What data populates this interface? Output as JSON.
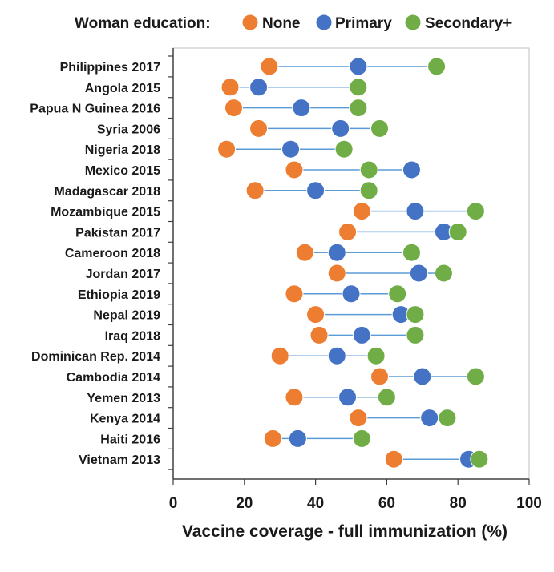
{
  "chart_data": {
    "type": "scatter",
    "subtype": "dumbbell",
    "legend": {
      "title": "Woman education:",
      "position": "top"
    },
    "series": [
      {
        "name": "None",
        "color": "#ED7D31"
      },
      {
        "name": "Primary",
        "color": "#4472C4"
      },
      {
        "name": "Secondary+",
        "color": "#70AD47"
      }
    ],
    "connector_color": "#5B9BD5",
    "xlabel": "Vaccine coverage - full immunization (%)",
    "xlim": [
      0,
      100
    ],
    "xticks": [
      0,
      20,
      40,
      60,
      80,
      100
    ],
    "grid": false,
    "categories": [
      "Philippines 2017",
      "Angola 2015",
      "Papua N Guinea 2016",
      "Syria 2006",
      "Nigeria 2018",
      "Mexico 2015",
      "Madagascar 2018",
      "Mozambique 2015",
      "Pakistan 2017",
      "Cameroon 2018",
      "Jordan 2017",
      "Ethiopia 2019",
      "Nepal 2019",
      "Iraq 2018",
      "Dominican Rep. 2014",
      "Cambodia 2014",
      "Yemen 2013",
      "Kenya 2014",
      "Haiti 2016",
      "Vietnam 2013"
    ],
    "values": {
      "None": [
        27,
        16,
        17,
        24,
        15,
        34,
        23,
        53,
        49,
        37,
        46,
        34,
        40,
        41,
        30,
        58,
        34,
        52,
        28,
        62
      ],
      "Primary": [
        52,
        24,
        36,
        47,
        33,
        67,
        40,
        68,
        76,
        46,
        69,
        50,
        64,
        53,
        46,
        70,
        49,
        72,
        35,
        83
      ],
      "Secondary+": [
        74,
        52,
        52,
        58,
        48,
        55,
        55,
        85,
        80,
        67,
        76,
        63,
        68,
        68,
        57,
        85,
        60,
        77,
        53,
        86
      ]
    }
  }
}
